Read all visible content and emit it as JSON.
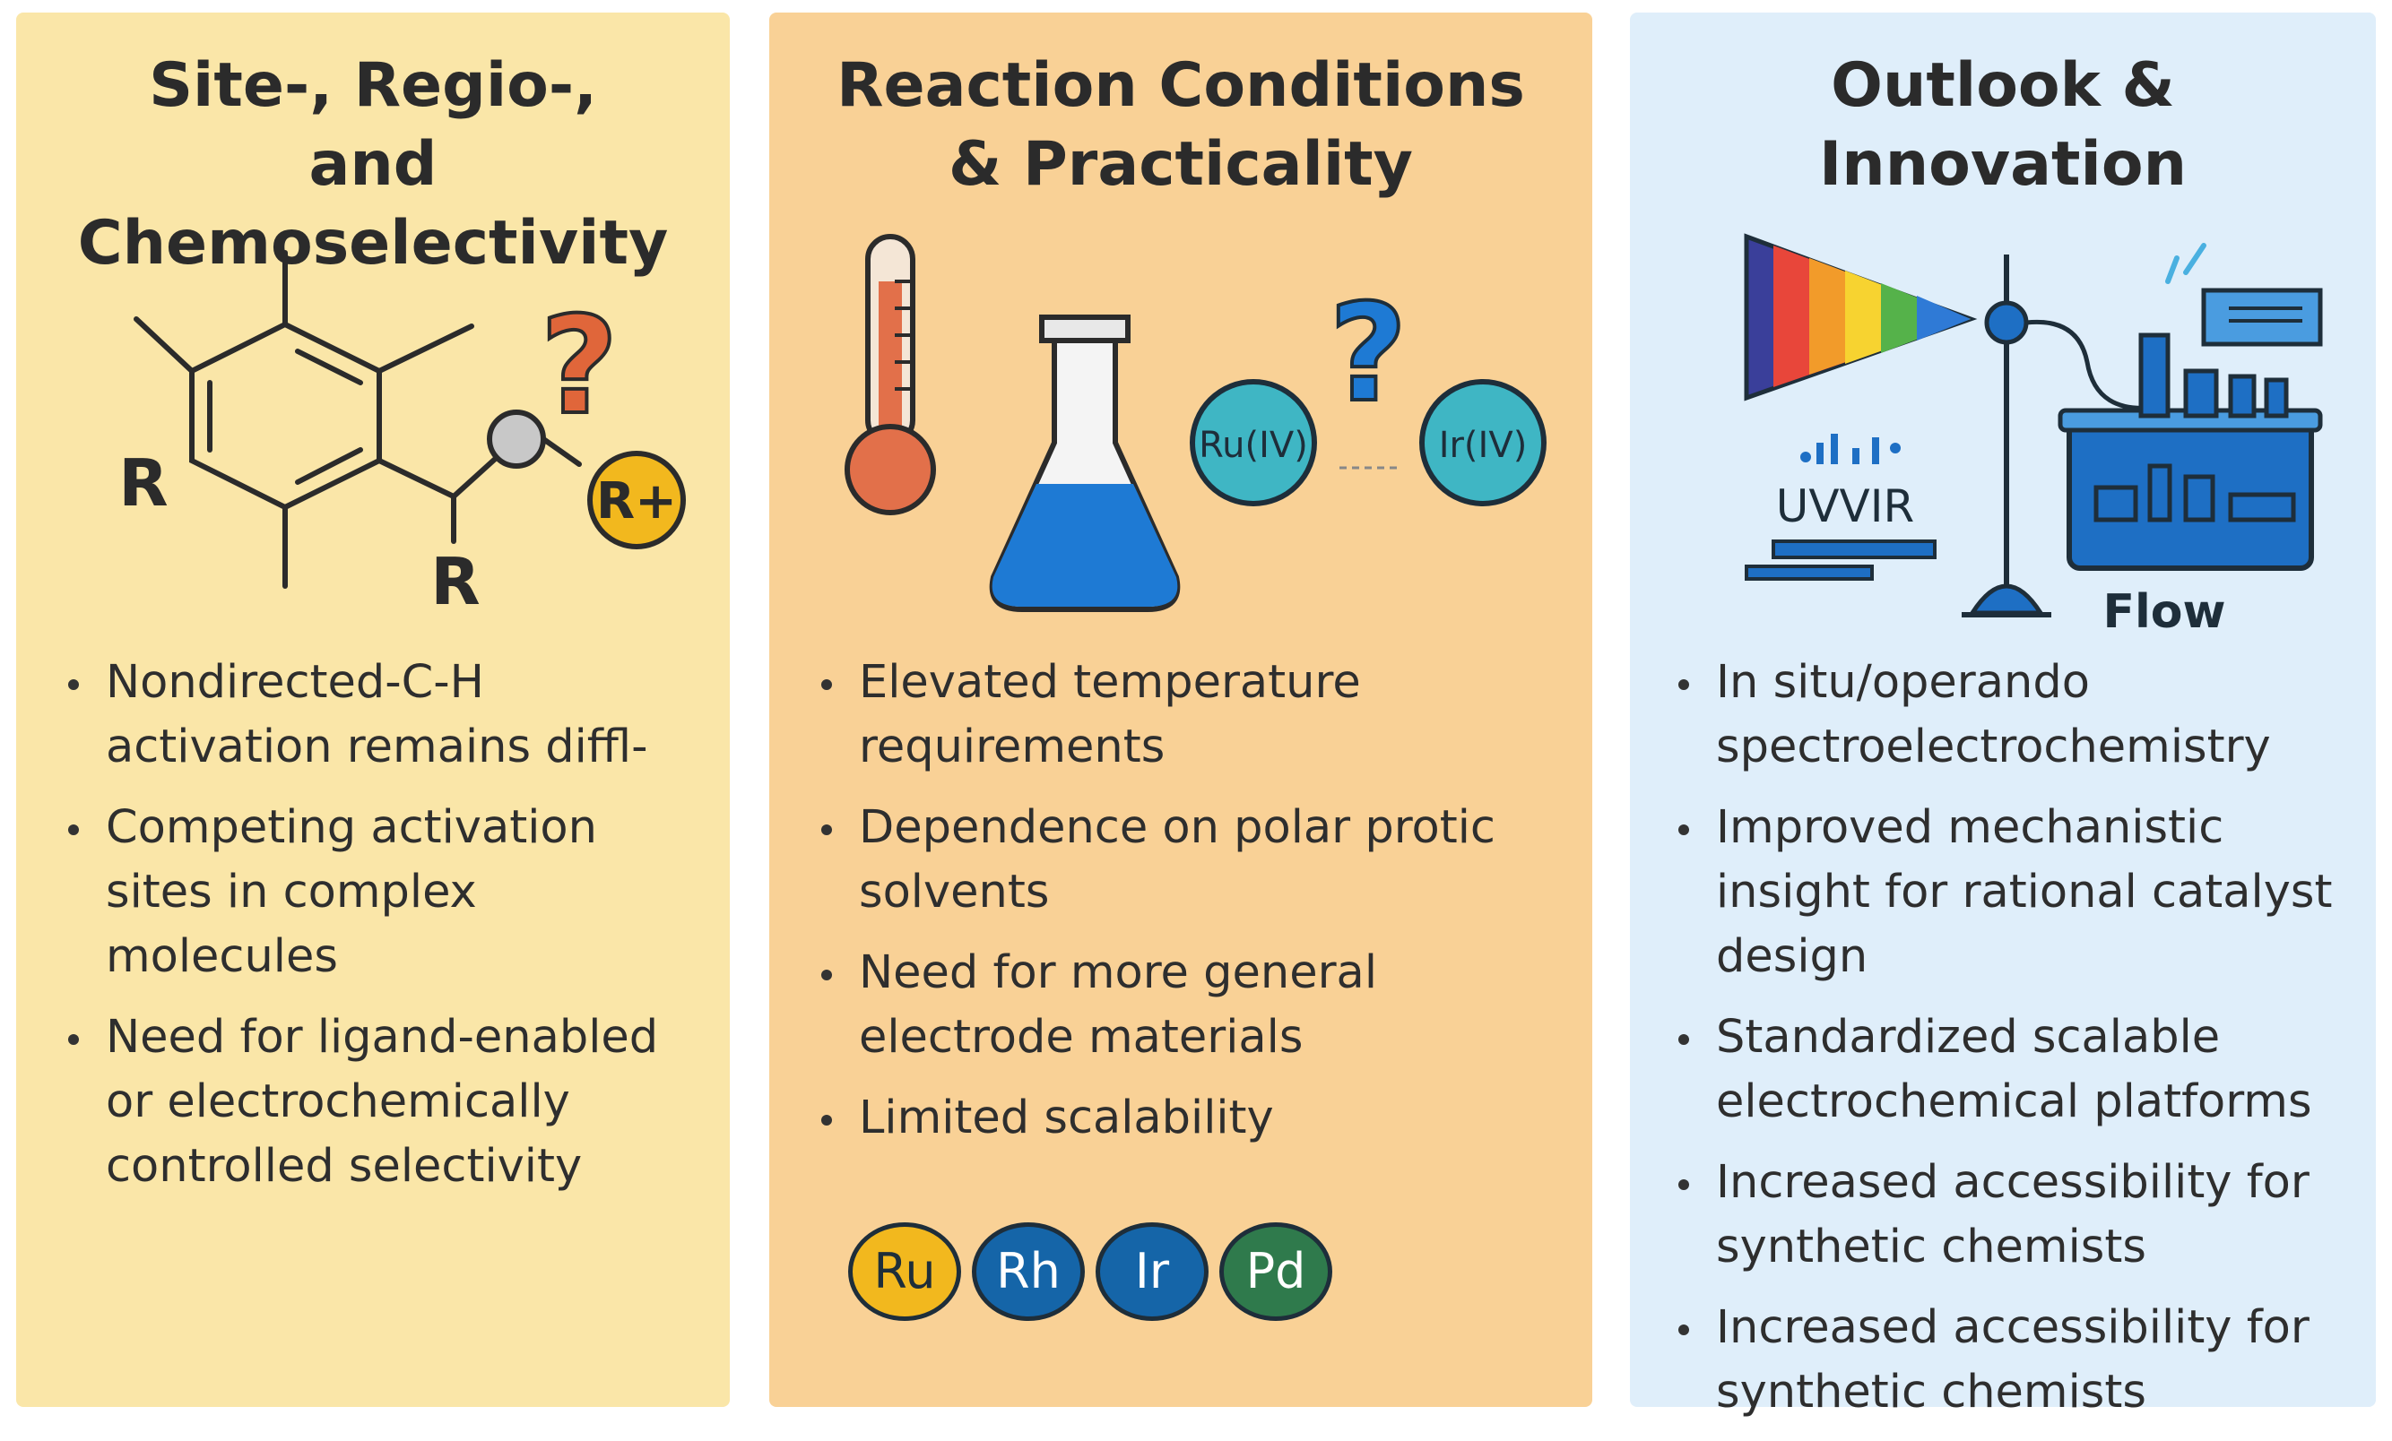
{
  "panels": [
    {
      "title": "Site-, Regio-,\nand Chemoselectivity",
      "illustration": {
        "r_label_1": "R",
        "r_label_2": "R",
        "cation_label": "R+",
        "question_mark": "?"
      },
      "bullets": [
        "Nondirected-C-H activation remains diffl-",
        "Competing activation sites in complex molecules",
        "Need for ligand-enabled or electrochemically controlled selectivity"
      ],
      "colors": {
        "background": "#fae6a8",
        "question": "#e0663a",
        "cation": "#f2b81e"
      }
    },
    {
      "title": "Reaction Conditions\n& Practicality",
      "illustration": {
        "metal_left": "Ru(IV)",
        "metal_right": "Ir(IV)",
        "question_mark": "?"
      },
      "bullets": [
        "Elevated temperature requirements",
        "Dependence on polar protic solvents",
        "Need for more general electrode materials",
        "Limited scalability"
      ],
      "metals": [
        {
          "label": "Ru",
          "color": "#f2b81e",
          "text_color": "#1e2e3a"
        },
        {
          "label": "Rh",
          "color": "#1565a8",
          "text_color": "#ffffff"
        },
        {
          "label": "Ir",
          "color": "#1565a8",
          "text_color": "#ffffff"
        },
        {
          "label": "Pd",
          "color": "#2f7a4c",
          "text_color": "#ffffff"
        }
      ],
      "colors": {
        "background": "#f9d196",
        "flask": "#1e7ad4",
        "thermometer": "#e2704a",
        "metal_bubble": "#3fb6c4"
      }
    },
    {
      "title": "Outlook &\nInnovation",
      "illustration": {
        "spectro_label": "UVVIR",
        "flow_label": "Flow"
      },
      "bullets": [
        "In situ/operando spectroelectrochemistry",
        "Improved mechanistic insight for rational catalyst design",
        "Standardized scalable electrochemical platforms",
        "Increased accessibility for synthetic chemists",
        "Increased accessibility for synthetic chemists"
      ],
      "colors": {
        "background": "#dfeefa",
        "instrument": "#1e6fc4"
      }
    }
  ]
}
